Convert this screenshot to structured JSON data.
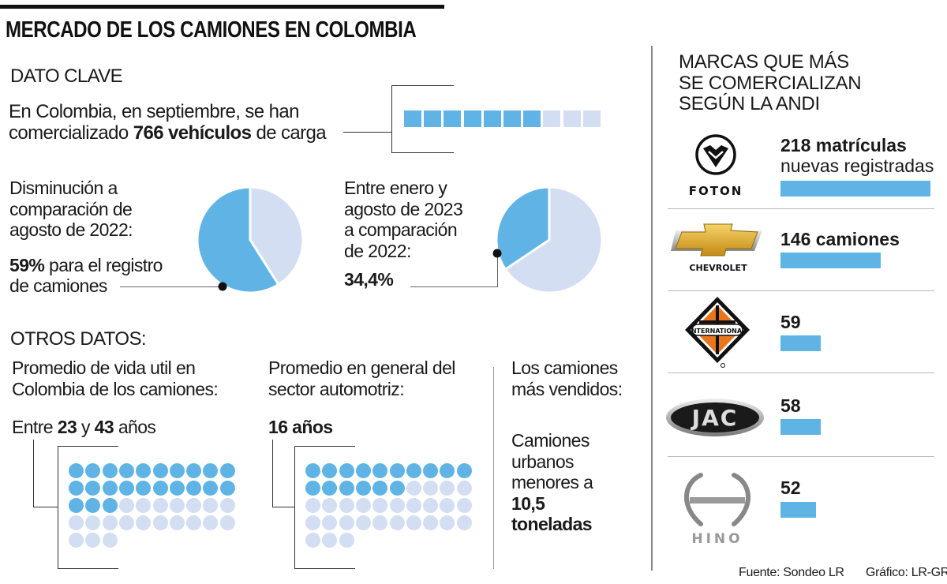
{
  "title": "MERCADO DE LOS CAMIONES EN COLOMBIA",
  "colors": {
    "blue": "#5fb4e5",
    "light": "#d3def2"
  },
  "dato_clave": {
    "heading": "DATO CLAVE",
    "line1": "En Colombia, en septiembre, se han",
    "line2_pre": "comercializado ",
    "line2_bold": "766 vehículos",
    "line2_post": " de carga"
  },
  "pie1_text": {
    "lines": [
      "Disminución a",
      "comparación de",
      "agosto de 2022:"
    ],
    "value_bold": "59%",
    "value_rest": " para el registro",
    "value_line2": "de camiones"
  },
  "pie2_text": {
    "lines": [
      "Entre enero y",
      "agosto de 2023",
      "a comparación",
      "de 2022:"
    ],
    "value_bold": "34,4%"
  },
  "otros": {
    "heading": "OTROS DATOS:",
    "col1": {
      "lines": [
        "Promedio de vida util en",
        "Colombia de los camiones:"
      ],
      "pre": "Entre ",
      "b1": "23",
      "mid": " y ",
      "b2": "43",
      "post": " años"
    },
    "col2": {
      "lines": [
        "Promedio en general del",
        "sector automotriz:"
      ],
      "bold": "16 años"
    },
    "col3": {
      "lines": [
        "Los camiones",
        "más vendidos:"
      ],
      "desc": [
        "Camiones",
        "urbanos",
        "menores a"
      ],
      "bold": [
        "10,5",
        "toneladas"
      ]
    }
  },
  "marcas": {
    "heading": [
      "MARCAS QUE MÁS",
      "SE COMERCIALIZAN",
      "SEGÚN LA ANDI"
    ],
    "items": [
      {
        "brand": "FOTON",
        "label": "218 matrículas",
        "sublabel": "nuevas registradas",
        "value": 218,
        "logo": "foton-logo"
      },
      {
        "brand": "CHEVROLET",
        "label": "146 camiones",
        "value": 146,
        "logo": "chevrolet-logo"
      },
      {
        "brand": "INTERNATIONAL",
        "label": "59",
        "value": 59,
        "logo": "international-logo"
      },
      {
        "brand": "JAC",
        "label": "58",
        "value": 58,
        "logo": "jac-logo"
      },
      {
        "brand": "HINO",
        "label": "52",
        "value": 52,
        "logo": "hino-logo"
      }
    ]
  },
  "footer": {
    "source": "Fuente: Sondeo LR",
    "credit": "Gráfico: LR-GR"
  },
  "chart_data": [
    {
      "type": "waffle",
      "total": 10,
      "filled": 7
    },
    {
      "type": "pie",
      "slices": [
        {
          "value": 59,
          "color": "#5fb4e5"
        },
        {
          "value": 41,
          "color": "#d3def2"
        }
      ]
    },
    {
      "type": "pie",
      "slices": [
        {
          "value": 34.4,
          "color": "#5fb4e5"
        },
        {
          "value": 65.6,
          "color": "#d3def2"
        }
      ]
    },
    {
      "type": "waffle",
      "total": 43,
      "filled": 23
    },
    {
      "type": "waffle",
      "total": 43,
      "filled": 16
    },
    {
      "type": "bar",
      "orientation": "horizontal",
      "categories": [
        "FOTON",
        "CHEVROLET",
        "INTERNATIONAL",
        "JAC",
        "HINO"
      ],
      "values": [
        218,
        146,
        59,
        58,
        52
      ]
    }
  ]
}
